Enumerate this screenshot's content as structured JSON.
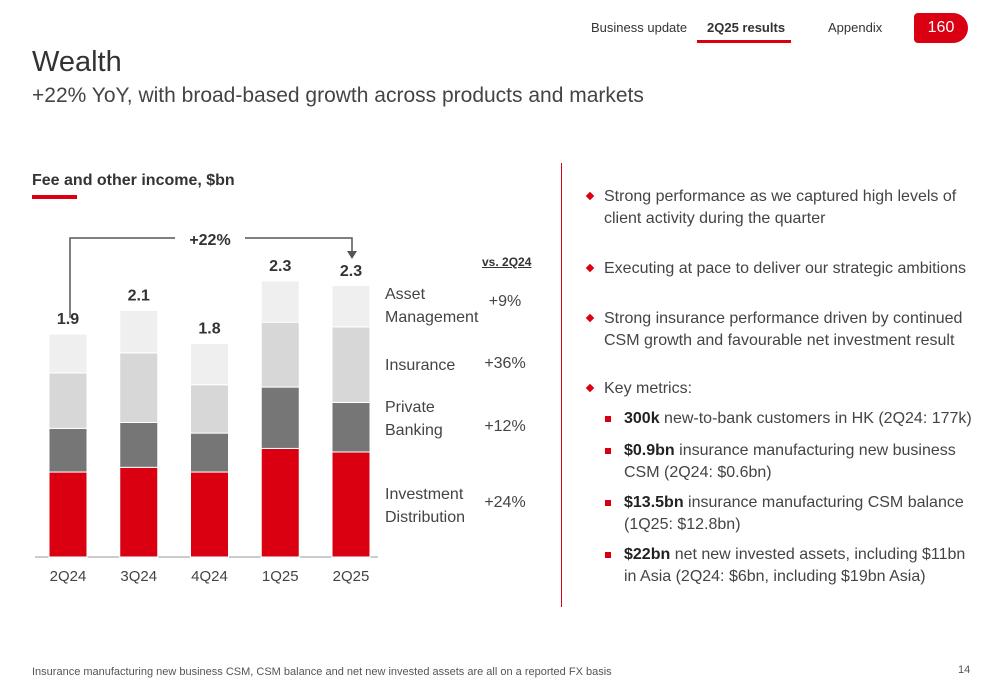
{
  "nav": {
    "items": [
      "Business update",
      "2Q25 results",
      "Appendix"
    ],
    "logo": "160"
  },
  "header": {
    "title": "Wealth",
    "subtitle": "+22% YoY, with broad-based growth across products and markets"
  },
  "chart_data": {
    "type": "bar",
    "stacked": true,
    "title": "Fee and other income, $bn",
    "categories": [
      "2Q24",
      "3Q24",
      "4Q24",
      "1Q25",
      "2Q25"
    ],
    "series": [
      {
        "name": "Investment Distribution",
        "color": "#db0011",
        "values": [
          0.72,
          0.76,
          0.72,
          0.92,
          0.89
        ],
        "change_label": "+24%"
      },
      {
        "name": "Private Banking",
        "color": "#767676",
        "values": [
          0.37,
          0.38,
          0.33,
          0.52,
          0.42
        ],
        "change_label": "+12%"
      },
      {
        "name": "Insurance",
        "color": "#d7d7d7",
        "values": [
          0.47,
          0.59,
          0.41,
          0.55,
          0.64
        ],
        "change_label": "+36%"
      },
      {
        "name": "Asset Management",
        "color": "#efefef",
        "values": [
          0.33,
          0.36,
          0.35,
          0.35,
          0.35
        ],
        "change_label": "+9%"
      }
    ],
    "totals": [
      1.9,
      2.1,
      1.8,
      2.3,
      2.3
    ],
    "growth_annotation": "+22%",
    "change_header": "vs. 2Q24"
  },
  "bullets": [
    {
      "text": "Strong performance as we captured high levels of client activity during the quarter"
    },
    {
      "text": "Executing at pace to deliver our strategic ambitions"
    },
    {
      "text": "Strong insurance performance driven by continued CSM growth and favourable net investment result"
    },
    {
      "text": "Key metrics:",
      "sub": [
        {
          "bold": "300k",
          "text": " new-to-bank customers in HK (2Q24: 177k)"
        },
        {
          "bold": "$0.9bn",
          "text": " insurance manufacturing new business CSM (2Q24: $0.6bn)"
        },
        {
          "bold": "$13.5bn",
          "text": " insurance manufacturing CSM balance (1Q25: $12.8bn)"
        },
        {
          "bold": "$22bn",
          "text": " net new invested assets, including $11bn in Asia (2Q24: $6bn, including $19bn Asia)"
        }
      ]
    }
  ],
  "footer": {
    "note": "Insurance manufacturing new business CSM, CSM balance and net new invested assets are all on a reported FX basis",
    "page": "14"
  }
}
